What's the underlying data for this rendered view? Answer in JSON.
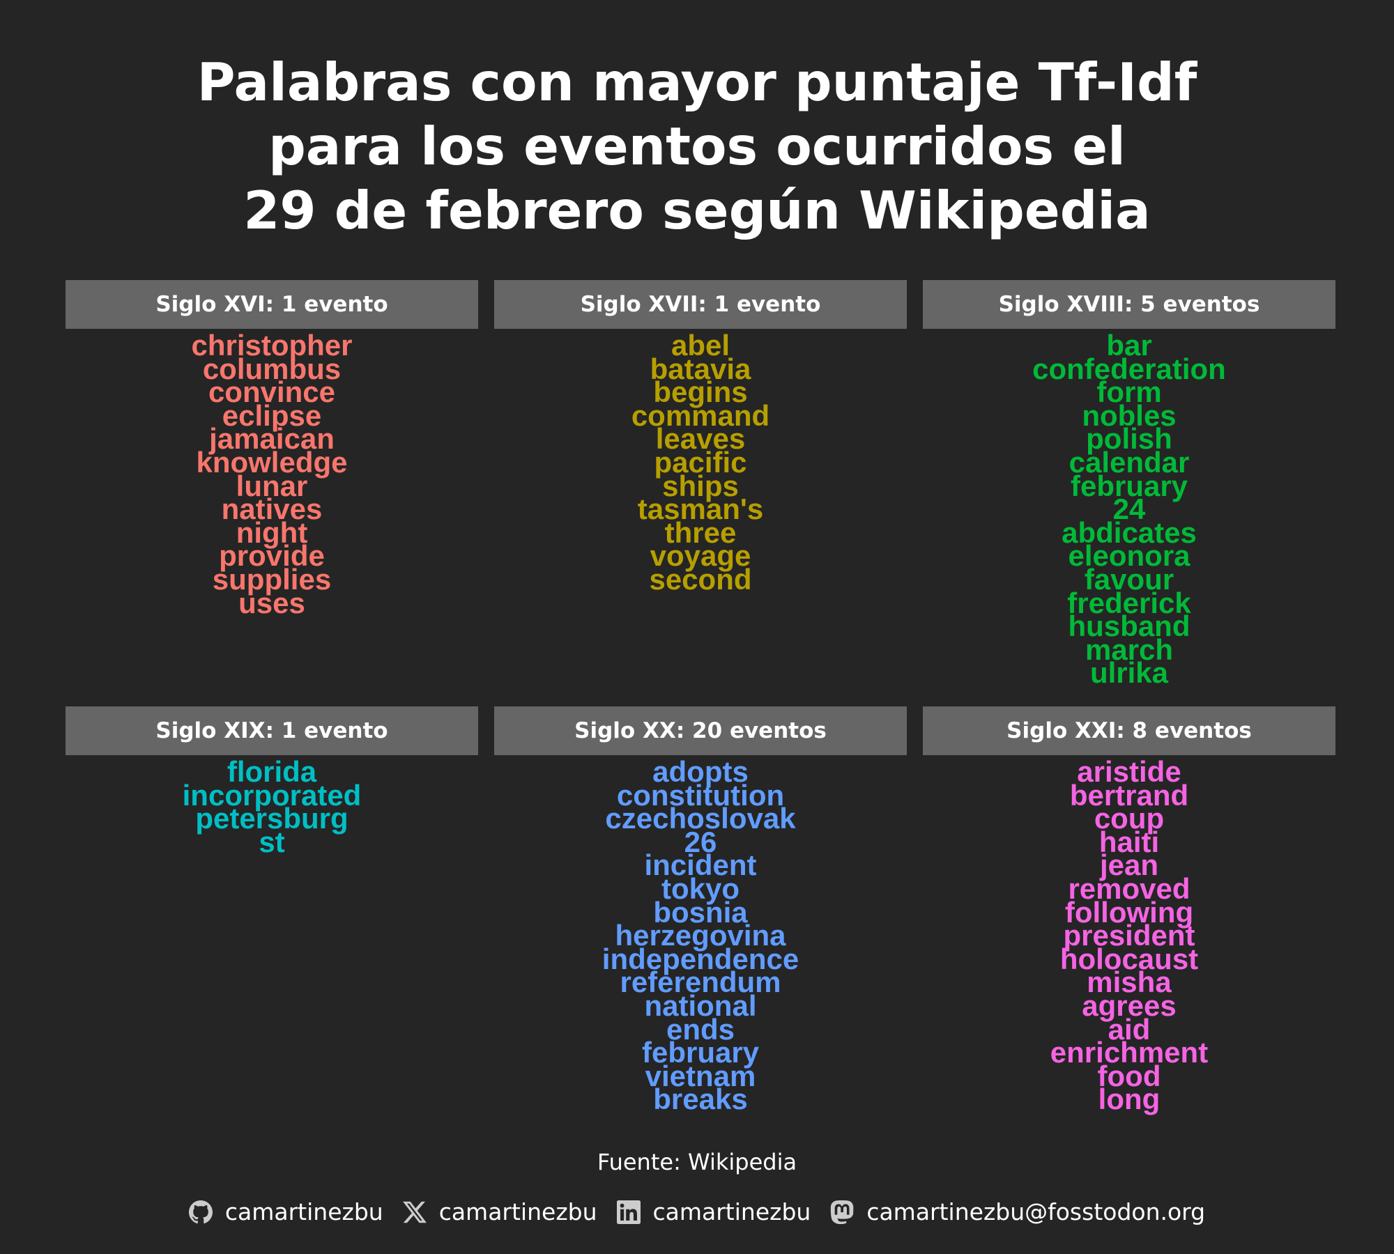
{
  "title_lines": [
    "Palabras con mayor puntaje Tf-Idf",
    "para los eventos ocurridos el",
    "29 de febrero según Wikipedia"
  ],
  "chart_data": {
    "type": "word-cloud-facets",
    "panels": [
      {
        "label": "Siglo XVI: 1 evento",
        "color": "#F8766D",
        "words": [
          "christopher",
          "columbus",
          "convince",
          "eclipse",
          "jamaican",
          "knowledge",
          "lunar",
          "natives",
          "night",
          "provide",
          "supplies",
          "uses"
        ]
      },
      {
        "label": "Siglo XVII: 1 evento",
        "color": "#B79F00",
        "words": [
          "abel",
          "batavia",
          "begins",
          "command",
          "leaves",
          "pacific",
          "ships",
          "tasman's",
          "three",
          "voyage",
          "second"
        ]
      },
      {
        "label": "Siglo XVIII: 5 eventos",
        "color": "#00BA38",
        "words": [
          "bar",
          "confederation",
          "form",
          "nobles",
          "polish",
          "calendar",
          "february",
          "24",
          "abdicates",
          "eleonora",
          "favour",
          "frederick",
          "husband",
          "march",
          "ulrika"
        ]
      },
      {
        "label": "Siglo XIX: 1 evento",
        "color": "#00BFC4",
        "words": [
          "florida",
          "incorporated",
          "petersburg",
          "st"
        ]
      },
      {
        "label": "Siglo XX: 20 eventos",
        "color": "#619CFF",
        "words": [
          "adopts",
          "constitution",
          "czechoslovak",
          "26",
          "incident",
          "tokyo",
          "bosnia",
          "herzegovina",
          "independence",
          "referendum",
          "national",
          "ends",
          "february",
          "vietnam",
          "breaks"
        ]
      },
      {
        "label": "Siglo XXI: 8 eventos",
        "color": "#F564E3",
        "words": [
          "aristide",
          "bertrand",
          "coup",
          "haiti",
          "jean",
          "removed",
          "following",
          "president",
          "holocaust",
          "misha",
          "agrees",
          "aid",
          "enrichment",
          "food",
          "long"
        ]
      }
    ]
  },
  "caption": "Fuente: Wikipedia",
  "credits": [
    {
      "icon": "github-icon",
      "text": "camartinezbu"
    },
    {
      "icon": "x-icon",
      "text": "camartinezbu"
    },
    {
      "icon": "linkedin-icon",
      "text": "camartinezbu"
    },
    {
      "icon": "mastodon-icon",
      "text": "camartinezbu@fosstodon.org"
    }
  ]
}
